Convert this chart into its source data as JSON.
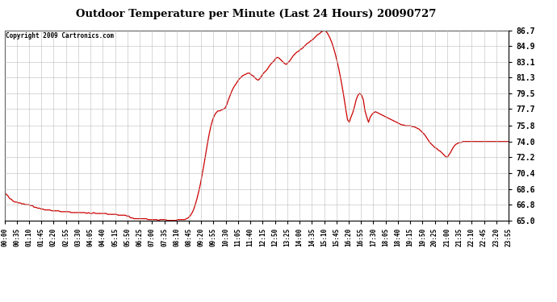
{
  "title": "Outdoor Temperature per Minute (Last 24 Hours) 20090727",
  "copyright": "Copyright 2009 Cartronics.com",
  "line_color": "#cc0000",
  "background_color": "#ffffff",
  "grid_color": "#bbbbbb",
  "yticks": [
    65.0,
    66.8,
    68.6,
    70.4,
    72.2,
    74.0,
    75.8,
    77.7,
    79.5,
    81.3,
    83.1,
    84.9,
    86.7
  ],
  "ylim": [
    65.0,
    86.7
  ],
  "xtick_labels": [
    "00:00",
    "00:35",
    "01:10",
    "01:45",
    "02:20",
    "02:55",
    "03:30",
    "04:05",
    "04:40",
    "05:15",
    "05:50",
    "06:25",
    "07:00",
    "07:35",
    "08:10",
    "08:45",
    "09:20",
    "09:55",
    "10:30",
    "11:05",
    "11:40",
    "12:15",
    "12:50",
    "13:25",
    "14:00",
    "14:35",
    "15:10",
    "15:45",
    "16:20",
    "16:55",
    "17:30",
    "18:05",
    "18:40",
    "19:15",
    "19:50",
    "20:25",
    "21:00",
    "21:35",
    "22:10",
    "22:45",
    "23:20",
    "23:55"
  ],
  "curve": [
    [
      0,
      68.1
    ],
    [
      5,
      68.0
    ],
    [
      10,
      67.8
    ],
    [
      15,
      67.5
    ],
    [
      20,
      67.4
    ],
    [
      25,
      67.2
    ],
    [
      30,
      67.1
    ],
    [
      35,
      67.1
    ],
    [
      40,
      67.0
    ],
    [
      45,
      67.0
    ],
    [
      50,
      66.9
    ],
    [
      55,
      66.9
    ],
    [
      60,
      66.8
    ],
    [
      65,
      66.8
    ],
    [
      70,
      66.8
    ],
    [
      75,
      66.7
    ],
    [
      80,
      66.7
    ],
    [
      85,
      66.5
    ],
    [
      90,
      66.5
    ],
    [
      95,
      66.4
    ],
    [
      100,
      66.4
    ],
    [
      105,
      66.3
    ],
    [
      110,
      66.3
    ],
    [
      115,
      66.2
    ],
    [
      120,
      66.2
    ],
    [
      125,
      66.2
    ],
    [
      130,
      66.2
    ],
    [
      135,
      66.1
    ],
    [
      140,
      66.1
    ],
    [
      145,
      66.1
    ],
    [
      150,
      66.1
    ],
    [
      155,
      66.1
    ],
    [
      160,
      66.0
    ],
    [
      165,
      66.0
    ],
    [
      170,
      66.0
    ],
    [
      175,
      66.0
    ],
    [
      180,
      66.0
    ],
    [
      185,
      66.0
    ],
    [
      190,
      65.9
    ],
    [
      195,
      65.9
    ],
    [
      200,
      65.9
    ],
    [
      205,
      65.9
    ],
    [
      210,
      65.9
    ],
    [
      215,
      65.9
    ],
    [
      220,
      65.9
    ],
    [
      225,
      65.9
    ],
    [
      230,
      65.9
    ],
    [
      235,
      65.8
    ],
    [
      240,
      65.9
    ],
    [
      245,
      65.8
    ],
    [
      250,
      65.8
    ],
    [
      255,
      65.9
    ],
    [
      260,
      65.8
    ],
    [
      265,
      65.8
    ],
    [
      270,
      65.8
    ],
    [
      275,
      65.8
    ],
    [
      280,
      65.8
    ],
    [
      285,
      65.8
    ],
    [
      290,
      65.8
    ],
    [
      295,
      65.7
    ],
    [
      300,
      65.7
    ],
    [
      305,
      65.7
    ],
    [
      310,
      65.7
    ],
    [
      315,
      65.7
    ],
    [
      320,
      65.7
    ],
    [
      325,
      65.6
    ],
    [
      330,
      65.6
    ],
    [
      335,
      65.6
    ],
    [
      340,
      65.6
    ],
    [
      345,
      65.6
    ],
    [
      350,
      65.5
    ],
    [
      355,
      65.5
    ],
    [
      360,
      65.3
    ],
    [
      365,
      65.3
    ],
    [
      370,
      65.2
    ],
    [
      375,
      65.2
    ],
    [
      380,
      65.2
    ],
    [
      385,
      65.2
    ],
    [
      390,
      65.2
    ],
    [
      395,
      65.2
    ],
    [
      400,
      65.2
    ],
    [
      405,
      65.2
    ],
    [
      410,
      65.1
    ],
    [
      415,
      65.1
    ],
    [
      420,
      65.1
    ],
    [
      425,
      65.1
    ],
    [
      430,
      65.1
    ],
    [
      435,
      65.1
    ],
    [
      440,
      65.0
    ],
    [
      445,
      65.1
    ],
    [
      450,
      65.1
    ],
    [
      455,
      65.1
    ],
    [
      460,
      65.1
    ],
    [
      465,
      65.0
    ],
    [
      470,
      65.0
    ],
    [
      475,
      65.0
    ],
    [
      480,
      65.0
    ],
    [
      485,
      65.0
    ],
    [
      490,
      65.0
    ],
    [
      495,
      65.1
    ],
    [
      500,
      65.1
    ],
    [
      505,
      65.1
    ],
    [
      510,
      65.1
    ],
    [
      515,
      65.1
    ],
    [
      520,
      65.2
    ],
    [
      525,
      65.3
    ],
    [
      530,
      65.5
    ],
    [
      535,
      65.8
    ],
    [
      540,
      66.2
    ],
    [
      545,
      66.8
    ],
    [
      550,
      67.5
    ],
    [
      555,
      68.3
    ],
    [
      560,
      69.2
    ],
    [
      565,
      70.3
    ],
    [
      570,
      71.4
    ],
    [
      575,
      72.6
    ],
    [
      580,
      73.8
    ],
    [
      585,
      74.9
    ],
    [
      590,
      75.8
    ],
    [
      595,
      76.5
    ],
    [
      600,
      77.0
    ],
    [
      605,
      77.3
    ],
    [
      610,
      77.5
    ],
    [
      615,
      77.5
    ],
    [
      620,
      77.6
    ],
    [
      625,
      77.7
    ],
    [
      630,
      77.8
    ],
    [
      635,
      78.2
    ],
    [
      640,
      78.8
    ],
    [
      645,
      79.3
    ],
    [
      650,
      79.8
    ],
    [
      655,
      80.2
    ],
    [
      660,
      80.5
    ],
    [
      665,
      80.8
    ],
    [
      670,
      81.1
    ],
    [
      675,
      81.3
    ],
    [
      680,
      81.5
    ],
    [
      685,
      81.6
    ],
    [
      690,
      81.7
    ],
    [
      695,
      81.8
    ],
    [
      700,
      81.8
    ],
    [
      705,
      81.6
    ],
    [
      710,
      81.5
    ],
    [
      715,
      81.3
    ],
    [
      720,
      81.1
    ],
    [
      725,
      81.0
    ],
    [
      730,
      81.2
    ],
    [
      735,
      81.5
    ],
    [
      740,
      81.8
    ],
    [
      745,
      82.0
    ],
    [
      750,
      82.2
    ],
    [
      755,
      82.5
    ],
    [
      760,
      82.8
    ],
    [
      765,
      83.0
    ],
    [
      770,
      83.2
    ],
    [
      775,
      83.5
    ],
    [
      780,
      83.6
    ],
    [
      785,
      83.5
    ],
    [
      790,
      83.3
    ],
    [
      795,
      83.1
    ],
    [
      800,
      82.9
    ],
    [
      805,
      82.8
    ],
    [
      810,
      83.0
    ],
    [
      815,
      83.2
    ],
    [
      820,
      83.5
    ],
    [
      825,
      83.8
    ],
    [
      830,
      84.0
    ],
    [
      835,
      84.2
    ],
    [
      840,
      84.3
    ],
    [
      845,
      84.5
    ],
    [
      850,
      84.6
    ],
    [
      855,
      84.8
    ],
    [
      860,
      85.0
    ],
    [
      865,
      85.2
    ],
    [
      870,
      85.3
    ],
    [
      875,
      85.5
    ],
    [
      880,
      85.6
    ],
    [
      885,
      85.8
    ],
    [
      890,
      86.0
    ],
    [
      895,
      86.2
    ],
    [
      900,
      86.3
    ],
    [
      905,
      86.5
    ],
    [
      910,
      86.6
    ],
    [
      915,
      86.7
    ],
    [
      920,
      86.5
    ],
    [
      925,
      86.2
    ],
    [
      930,
      85.8
    ],
    [
      935,
      85.3
    ],
    [
      940,
      84.7
    ],
    [
      945,
      84.0
    ],
    [
      950,
      83.2
    ],
    [
      955,
      82.3
    ],
    [
      960,
      81.3
    ],
    [
      965,
      80.2
    ],
    [
      970,
      79.0
    ],
    [
      975,
      77.7
    ],
    [
      980,
      76.5
    ],
    [
      985,
      76.2
    ],
    [
      990,
      76.8
    ],
    [
      995,
      77.3
    ],
    [
      1000,
      78.0
    ],
    [
      1005,
      78.8
    ],
    [
      1010,
      79.3
    ],
    [
      1015,
      79.5
    ],
    [
      1020,
      79.3
    ],
    [
      1025,
      78.8
    ],
    [
      1030,
      77.5
    ],
    [
      1035,
      76.8
    ],
    [
      1040,
      76.2
    ],
    [
      1045,
      76.8
    ],
    [
      1050,
      77.1
    ],
    [
      1055,
      77.3
    ],
    [
      1060,
      77.4
    ],
    [
      1065,
      77.3
    ],
    [
      1070,
      77.2
    ],
    [
      1075,
      77.1
    ],
    [
      1080,
      77.0
    ],
    [
      1085,
      76.9
    ],
    [
      1090,
      76.8
    ],
    [
      1095,
      76.7
    ],
    [
      1100,
      76.6
    ],
    [
      1105,
      76.5
    ],
    [
      1110,
      76.4
    ],
    [
      1115,
      76.3
    ],
    [
      1120,
      76.2
    ],
    [
      1125,
      76.1
    ],
    [
      1130,
      76.0
    ],
    [
      1135,
      75.9
    ],
    [
      1140,
      75.9
    ],
    [
      1145,
      75.8
    ],
    [
      1150,
      75.8
    ],
    [
      1155,
      75.8
    ],
    [
      1160,
      75.8
    ],
    [
      1165,
      75.7
    ],
    [
      1170,
      75.7
    ],
    [
      1175,
      75.6
    ],
    [
      1180,
      75.5
    ],
    [
      1185,
      75.4
    ],
    [
      1190,
      75.2
    ],
    [
      1195,
      75.0
    ],
    [
      1200,
      74.8
    ],
    [
      1205,
      74.5
    ],
    [
      1210,
      74.2
    ],
    [
      1215,
      73.9
    ],
    [
      1220,
      73.7
    ],
    [
      1225,
      73.5
    ],
    [
      1230,
      73.3
    ],
    [
      1235,
      73.2
    ],
    [
      1240,
      73.0
    ],
    [
      1245,
      72.9
    ],
    [
      1250,
      72.7
    ],
    [
      1255,
      72.5
    ],
    [
      1260,
      72.3
    ],
    [
      1265,
      72.2
    ],
    [
      1270,
      72.5
    ],
    [
      1275,
      72.8
    ],
    [
      1280,
      73.2
    ],
    [
      1285,
      73.5
    ],
    [
      1290,
      73.7
    ],
    [
      1295,
      73.8
    ],
    [
      1300,
      73.9
    ],
    [
      1305,
      73.9
    ],
    [
      1310,
      74.0
    ],
    [
      1315,
      74.0
    ],
    [
      1320,
      74.0
    ],
    [
      1325,
      74.0
    ],
    [
      1330,
      74.0
    ],
    [
      1335,
      74.0
    ],
    [
      1340,
      74.0
    ],
    [
      1345,
      74.0
    ],
    [
      1350,
      74.0
    ],
    [
      1355,
      74.0
    ],
    [
      1360,
      74.0
    ],
    [
      1365,
      74.0
    ],
    [
      1370,
      74.0
    ],
    [
      1375,
      74.0
    ],
    [
      1380,
      74.0
    ],
    [
      1385,
      74.0
    ],
    [
      1390,
      74.0
    ],
    [
      1395,
      74.0
    ],
    [
      1400,
      74.0
    ],
    [
      1405,
      74.0
    ],
    [
      1410,
      74.0
    ],
    [
      1415,
      74.0
    ],
    [
      1420,
      74.0
    ],
    [
      1425,
      74.0
    ],
    [
      1430,
      74.0
    ],
    [
      1435,
      74.0
    ],
    [
      1440,
      74.0
    ]
  ]
}
